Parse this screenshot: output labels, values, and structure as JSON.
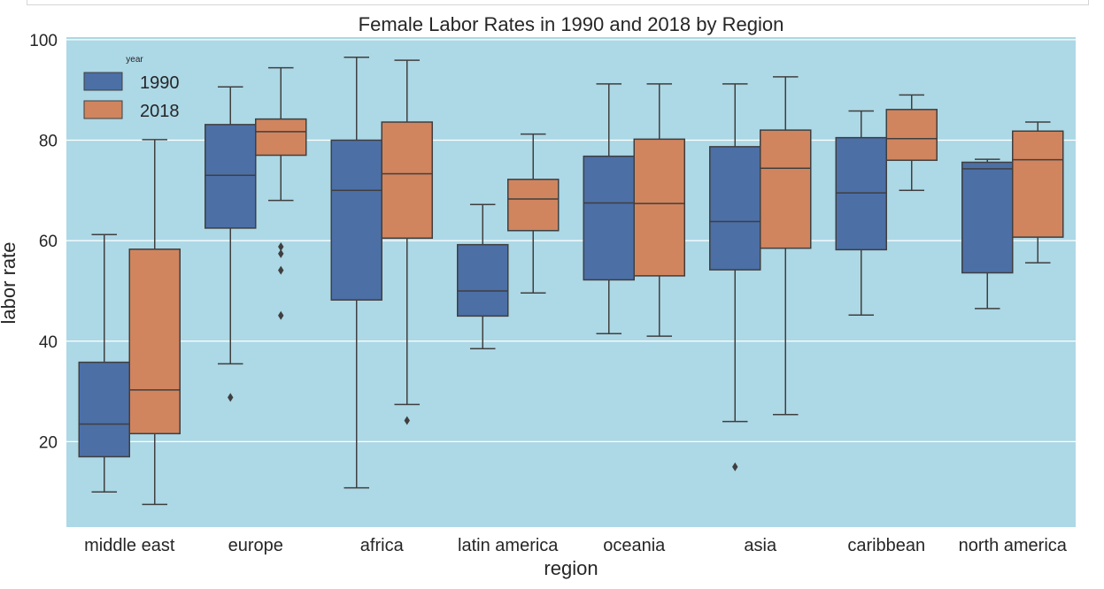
{
  "chart_data": {
    "type": "box",
    "title": "Female Labor Rates in 1990 and 2018 by Region",
    "xlabel": "region",
    "ylabel": "labor rate",
    "ylim": [
      3,
      100.5
    ],
    "yticks": [
      20,
      40,
      60,
      80,
      100
    ],
    "grid": true,
    "legend": {
      "title": "year",
      "position": "top-left"
    },
    "categories": [
      "middle east",
      "europe",
      "africa",
      "latin america",
      "oceania",
      "asia",
      "caribbean",
      "north america"
    ],
    "colors": {
      "plot_bg": "#add8e6",
      "grid": "#ffffff",
      "line": "#3f3f3f"
    },
    "series": [
      {
        "name": "1990",
        "color": "#4c6fa6",
        "boxes": [
          {
            "whislo": 10,
            "q1": 17,
            "med": 23.5,
            "q3": 35.8,
            "whishi": 61.2,
            "fliers": []
          },
          {
            "whislo": 35.5,
            "q1": 62.5,
            "med": 73,
            "q3": 83.1,
            "whishi": 90.6,
            "fliers": [
              28.8
            ]
          },
          {
            "whislo": 10.8,
            "q1": 48.2,
            "med": 70,
            "q3": 80,
            "whishi": 96.5,
            "fliers": []
          },
          {
            "whislo": 38.5,
            "q1": 45,
            "med": 50,
            "q3": 59.2,
            "whishi": 67.2,
            "fliers": []
          },
          {
            "whislo": 41.5,
            "q1": 52.2,
            "med": 67.5,
            "q3": 76.8,
            "whishi": 91.2,
            "fliers": []
          },
          {
            "whislo": 24,
            "q1": 54.2,
            "med": 63.8,
            "q3": 78.7,
            "whishi": 91.2,
            "fliers": [
              15
            ]
          },
          {
            "whislo": 45.2,
            "q1": 58.2,
            "med": 69.5,
            "q3": 80.5,
            "whishi": 85.8,
            "fliers": []
          },
          {
            "whislo": 46.5,
            "q1": 53.6,
            "med": 74.3,
            "q3": 75.6,
            "whishi": 76.2,
            "fliers": []
          }
        ]
      },
      {
        "name": "2018",
        "color": "#d0855f",
        "boxes": [
          {
            "whislo": 7.5,
            "q1": 21.6,
            "med": 30.3,
            "q3": 58.3,
            "whishi": 80.1,
            "fliers": []
          },
          {
            "whislo": 68,
            "q1": 77,
            "med": 81.7,
            "q3": 84.2,
            "whishi": 94.4,
            "fliers": [
              58.8,
              57.4,
              54.1,
              45.1
            ]
          },
          {
            "whislo": 27.4,
            "q1": 60.5,
            "med": 73.3,
            "q3": 83.6,
            "whishi": 95.9,
            "fliers": [
              24.2
            ]
          },
          {
            "whislo": 49.6,
            "q1": 62,
            "med": 68.3,
            "q3": 72.2,
            "whishi": 81.2,
            "fliers": []
          },
          {
            "whislo": 41,
            "q1": 53,
            "med": 67.4,
            "q3": 80.2,
            "whishi": 91.2,
            "fliers": []
          },
          {
            "whislo": 25.4,
            "q1": 58.5,
            "med": 74.4,
            "q3": 82,
            "whishi": 92.6,
            "fliers": []
          },
          {
            "whislo": 70,
            "q1": 76,
            "med": 80.3,
            "q3": 86.1,
            "whishi": 89,
            "fliers": []
          },
          {
            "whislo": 55.6,
            "q1": 60.7,
            "med": 76.1,
            "q3": 81.8,
            "whishi": 83.6,
            "fliers": []
          }
        ]
      }
    ]
  }
}
